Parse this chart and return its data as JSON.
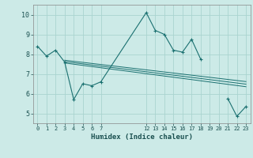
{
  "xlabel": "Humidex (Indice chaleur)",
  "bg_color": "#cceae7",
  "grid_color": "#aad4d0",
  "line_color": "#1a7070",
  "xlim": [
    -0.5,
    23.5
  ],
  "ylim": [
    4.5,
    10.5
  ],
  "xticks": [
    0,
    1,
    2,
    3,
    4,
    5,
    6,
    7,
    12,
    13,
    14,
    15,
    16,
    17,
    18,
    19,
    20,
    21,
    22,
    23
  ],
  "yticks": [
    5,
    6,
    7,
    8,
    9,
    10
  ],
  "line1_x": [
    0,
    1,
    2,
    3,
    4,
    5,
    6,
    7,
    12,
    13,
    14,
    15,
    16,
    17,
    18,
    19,
    20,
    21,
    22,
    23
  ],
  "line1_y": [
    8.4,
    7.9,
    8.2,
    7.6,
    5.7,
    6.5,
    6.4,
    6.6,
    10.1,
    9.2,
    9.0,
    8.2,
    8.1,
    8.75,
    7.75,
    null,
    null,
    5.75,
    4.85,
    5.35
  ],
  "line2_x": [
    3,
    23
  ],
  "line2_y": [
    7.55,
    6.35
  ],
  "line3_x": [
    3,
    23
  ],
  "line3_y": [
    7.62,
    6.48
  ],
  "line4_x": [
    3,
    23
  ],
  "line4_y": [
    7.69,
    6.61
  ]
}
